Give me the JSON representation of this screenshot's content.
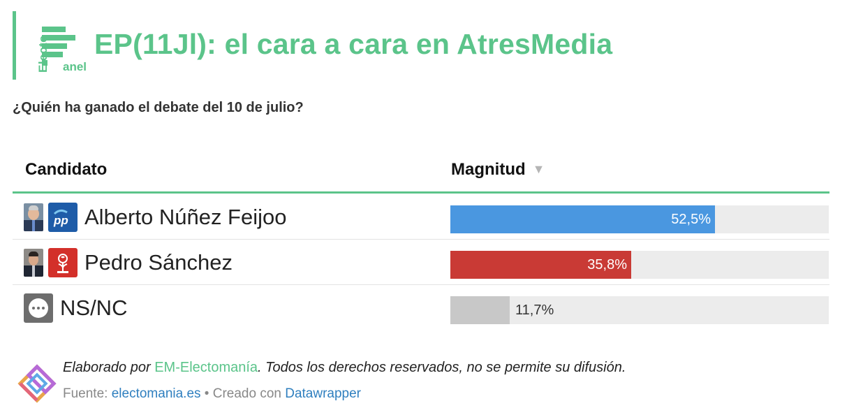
{
  "header": {
    "logo_text_vertical": "Electo",
    "logo_text_bottom": "anel",
    "title": "EP(11Jl): el cara a cara en AtresMedia"
  },
  "subtitle": "¿Quién ha ganado el debate del 10 de julio?",
  "table": {
    "col_candidate": "Candidato",
    "col_magnitude": "Magnitud",
    "sort_icon": "sort-down-triangle-icon"
  },
  "chart_data": {
    "type": "bar",
    "orientation": "horizontal",
    "categories": [
      "Alberto Núñez Feijoo",
      "Pedro Sánchez",
      "NS/NC"
    ],
    "values": [
      52.5,
      35.8,
      11.7
    ],
    "value_labels": [
      "52,5%",
      "35,8%",
      "11,7%"
    ],
    "colors": [
      "#4a97e0",
      "#c93a35",
      "#c8c8c8"
    ],
    "party_icons": [
      "pp-logo-icon",
      "psoe-rose-logo-icon",
      "dots-icon"
    ],
    "xlim": [
      0,
      75
    ],
    "unit": "%"
  },
  "footer": {
    "credit_prefix": "Elaborado por ",
    "credit_org": "EM-Electomanía",
    "credit_suffix": ". Todos los derechos reservados, no se permite su difusión.",
    "source_label": "Fuente: ",
    "source_link": "electomania.es",
    "created_with": " • Creado con ",
    "tool_link": "Datawrapper"
  },
  "colors": {
    "accent": "#5bc48a",
    "track": "#ececec",
    "link": "#2f7fbf"
  }
}
